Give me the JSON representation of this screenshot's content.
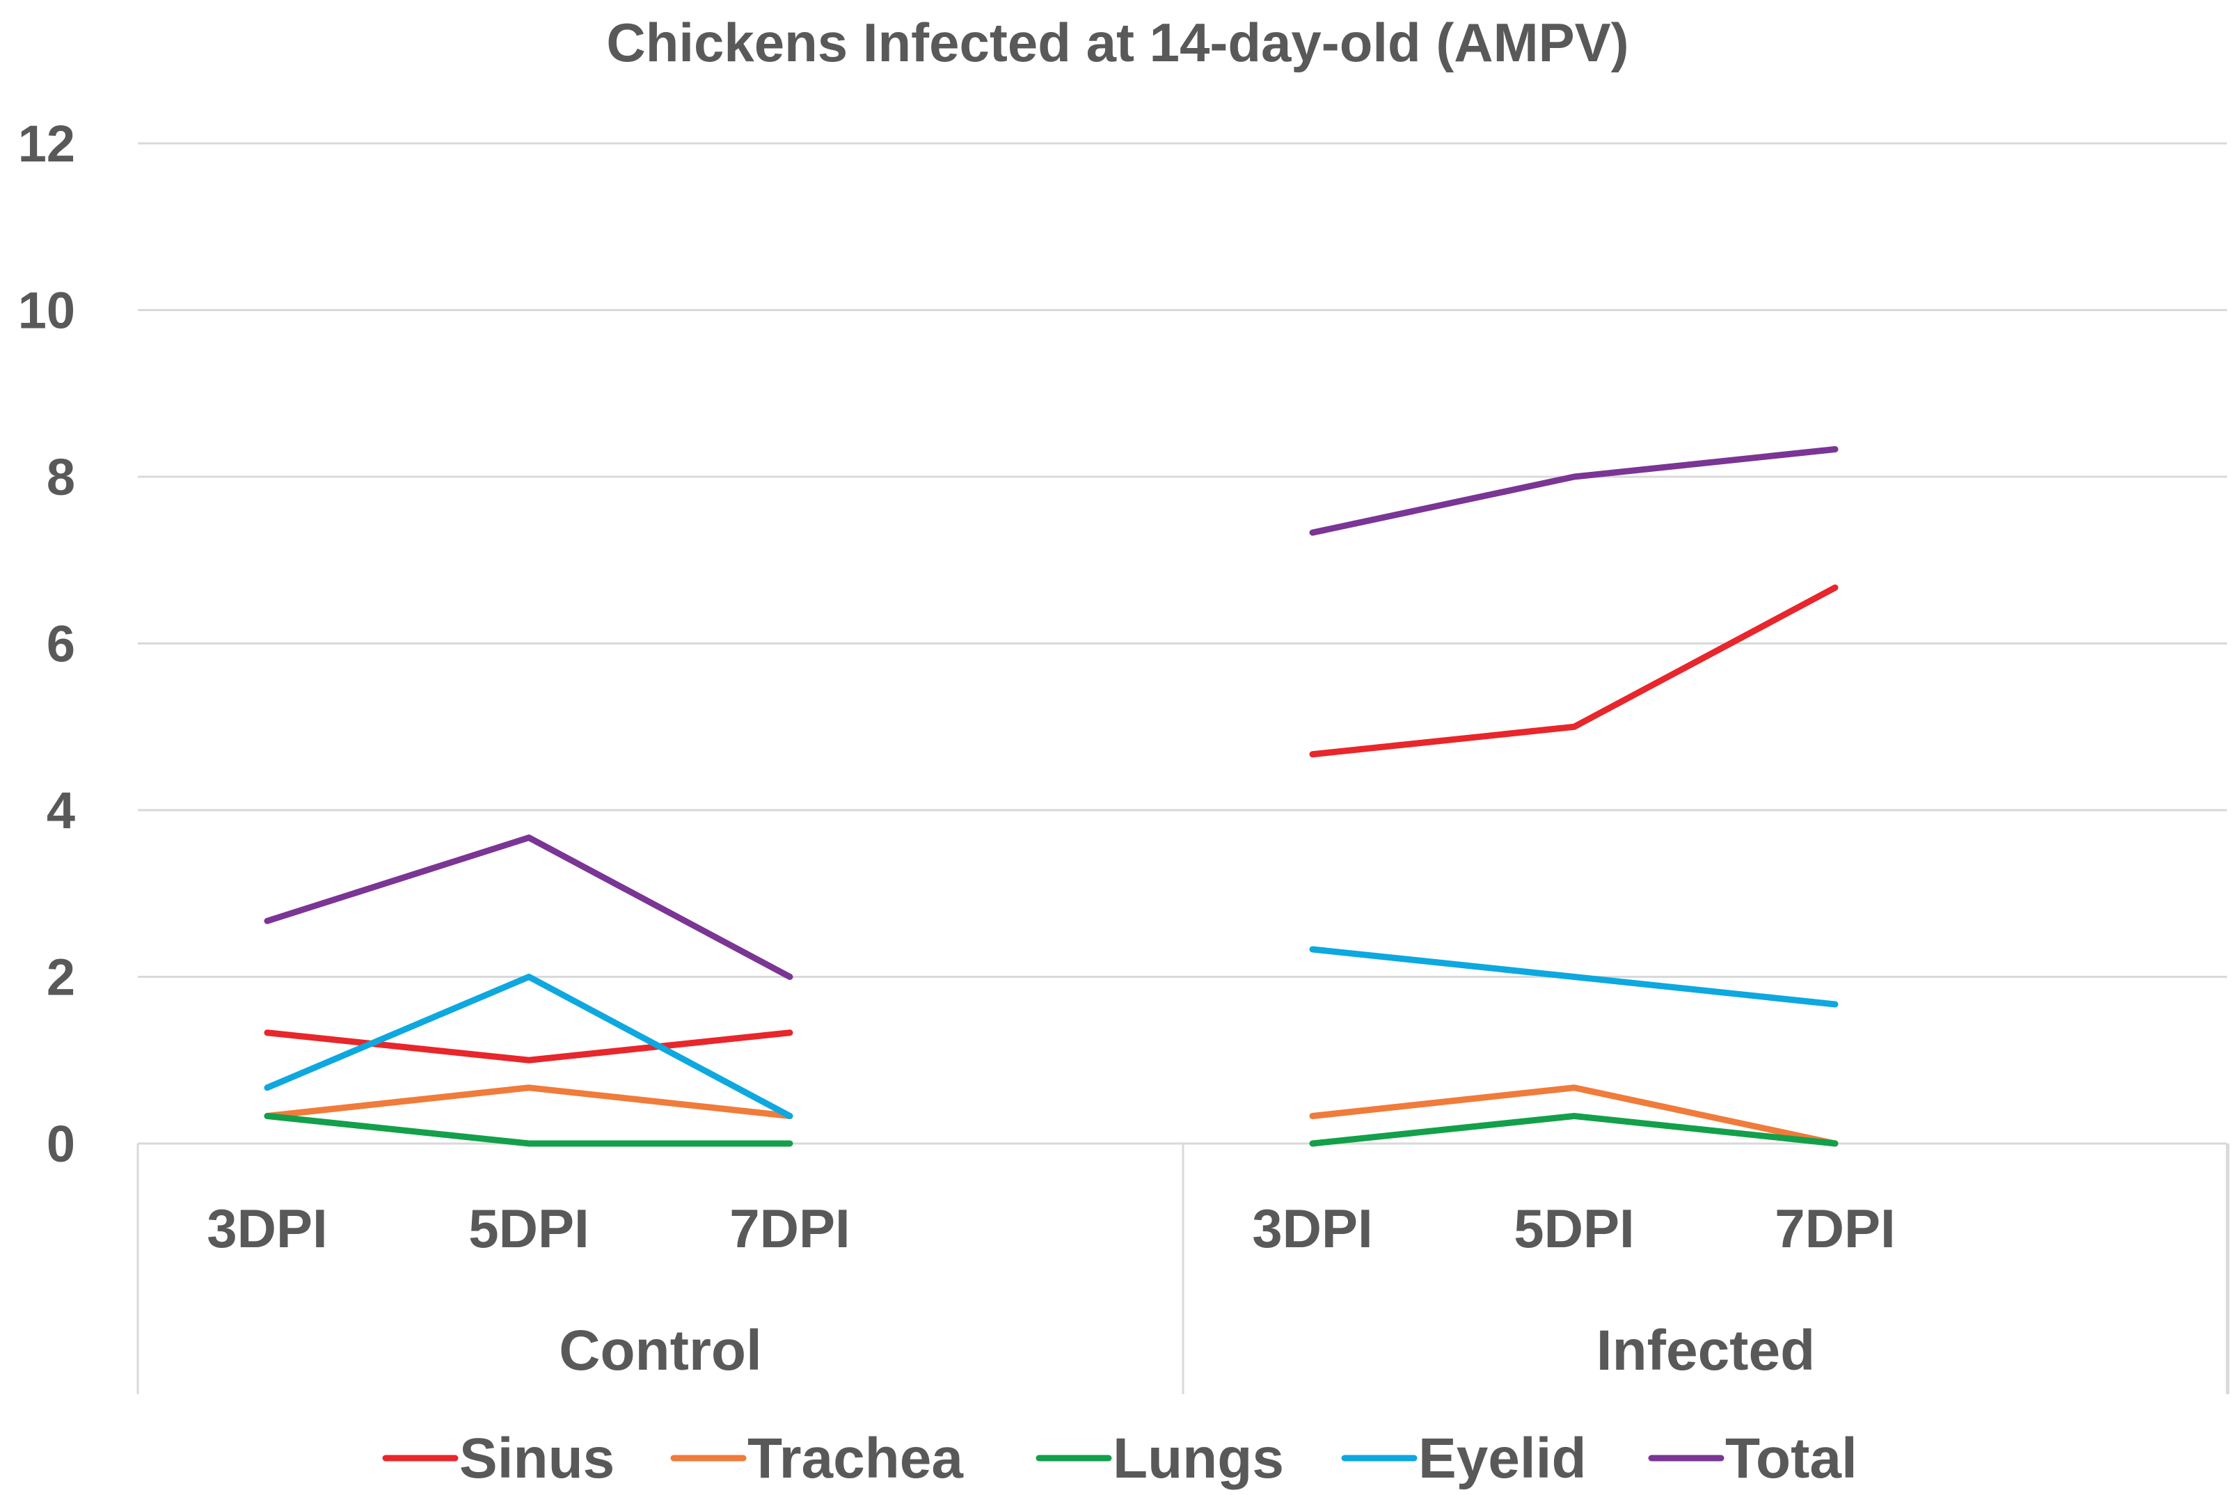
{
  "chart_data": {
    "type": "line",
    "title": "Chickens Infected at 14-day-old (AMPV)",
    "xlabel": "",
    "ylabel": "",
    "ylim": [
      0,
      12
    ],
    "yticks": [
      0,
      2,
      4,
      6,
      8,
      10,
      12
    ],
    "grid": true,
    "legend_position": "bottom",
    "groups": [
      {
        "label": "Control",
        "categories": [
          "3DPI",
          "5DPI",
          "7DPI"
        ]
      },
      {
        "label": "Infected",
        "categories": [
          "3DPI",
          "5DPI",
          "7DPI"
        ]
      }
    ],
    "series": [
      {
        "name": "Sinus",
        "color": "#e8262b",
        "groups": [
          [
            1.33,
            1.0,
            1.33
          ],
          [
            4.67,
            5.0,
            6.67
          ]
        ]
      },
      {
        "name": "Trachea",
        "color": "#f07b3a",
        "groups": [
          [
            0.33,
            0.67,
            0.33
          ],
          [
            0.33,
            0.67,
            0.0
          ]
        ]
      },
      {
        "name": "Lungs",
        "color": "#12a04a",
        "groups": [
          [
            0.33,
            0.0,
            0.0
          ],
          [
            0.0,
            0.33,
            0.0
          ]
        ]
      },
      {
        "name": "Eyelid",
        "color": "#0da8df",
        "groups": [
          [
            0.67,
            2.0,
            0.33
          ],
          [
            2.33,
            2.0,
            1.67
          ]
        ]
      },
      {
        "name": "Total",
        "color": "#7a3595",
        "groups": [
          [
            2.67,
            3.67,
            2.0
          ],
          [
            7.33,
            8.0,
            8.33
          ]
        ]
      }
    ]
  }
}
